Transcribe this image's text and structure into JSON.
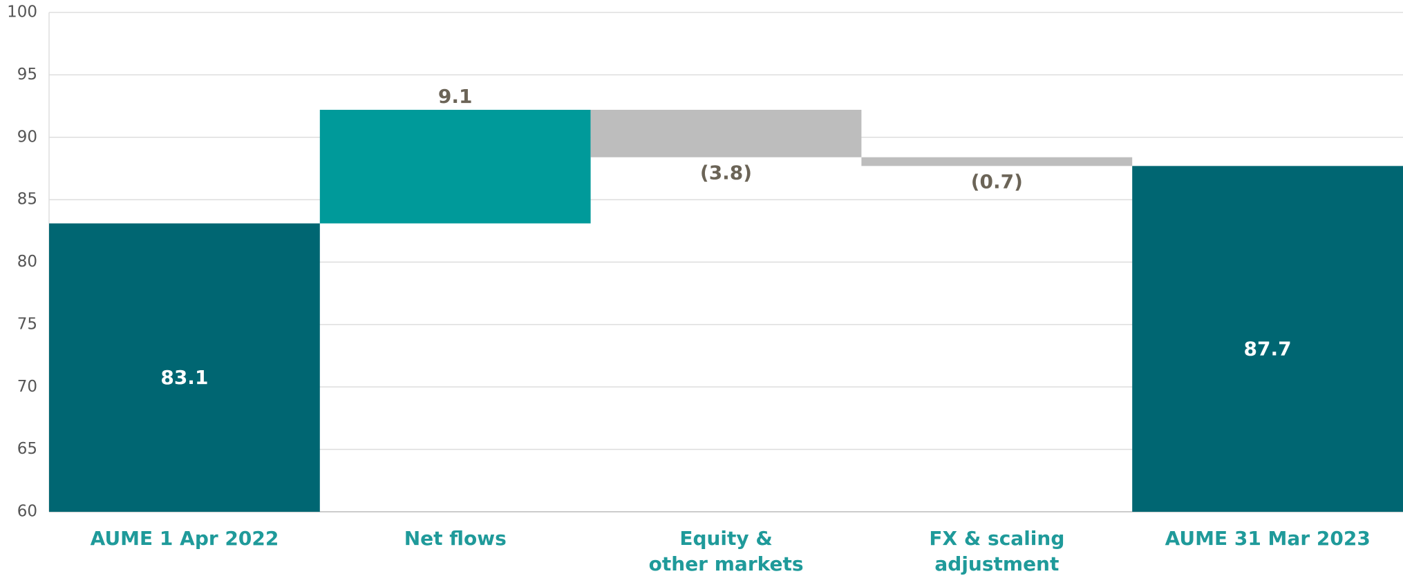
{
  "chart_data": {
    "type": "waterfall",
    "categories": [
      "AUME 1 Apr 2022",
      "Net flows",
      "Equity &\nother markets",
      "FX & scaling\nadjustment",
      "AUME 31 Mar 2023"
    ],
    "values": [
      83.1,
      9.1,
      -3.8,
      -0.7,
      87.7
    ],
    "value_labels": [
      "83.1",
      "9.1",
      "(3.8)",
      "(0.7)",
      "87.7"
    ],
    "measure": [
      "absolute",
      "relative",
      "relative",
      "relative",
      "total"
    ],
    "colors": [
      "#006672",
      "#009a9a",
      "#bdbdbd",
      "#bdbdbd",
      "#006672"
    ],
    "ylim": [
      60,
      100
    ],
    "yticks": [
      60,
      65,
      70,
      75,
      80,
      85,
      90,
      95,
      100
    ],
    "grid": true
  }
}
